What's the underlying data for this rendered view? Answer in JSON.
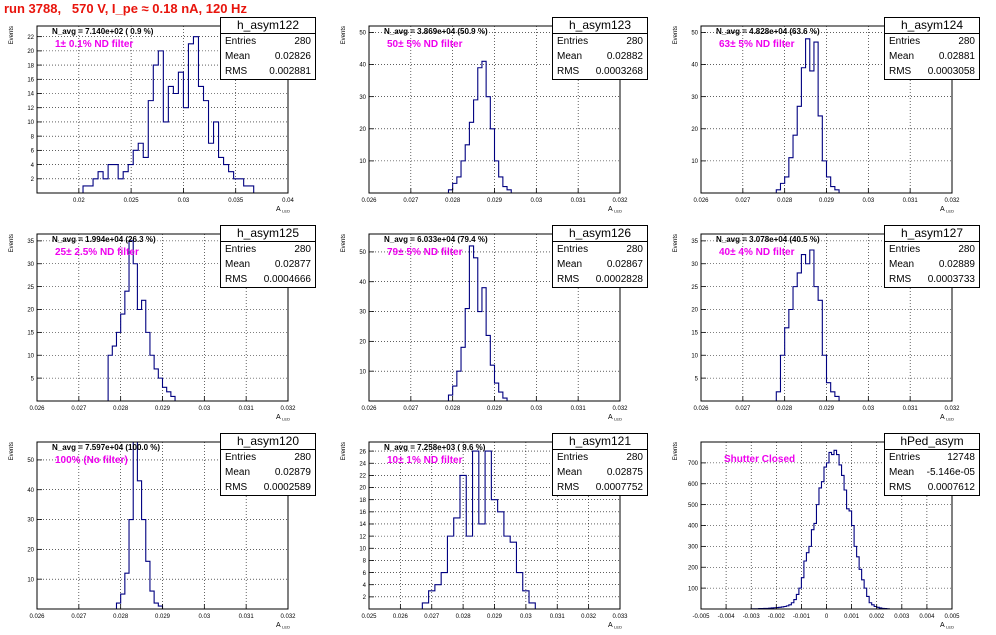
{
  "title": "run 3788,   570 V, I_pe ≈ 0.18 nA, 120 Hz",
  "filter_color": "#ee00ee",
  "hist_color": "#000080",
  "title_color": "#e8140c",
  "chart_data": [
    {
      "type": "histogram",
      "name": "h_asym122",
      "navg": "N_avg = 7.140e+02 ( 0.9 %)",
      "filter": "1± 0.1% ND filter",
      "stats": {
        "entries": "280",
        "mean": "0.02826",
        "rms": "0.002881"
      },
      "xlim": [
        0.016,
        0.04
      ],
      "ylim": [
        0,
        23.5
      ],
      "xticks": [
        0.02,
        0.025,
        0.03,
        0.035,
        0.04
      ],
      "xticklabels": [
        "0.02",
        "0.025",
        "0.03",
        "0.035",
        "0.04"
      ],
      "yticks": [
        2,
        4,
        6,
        8,
        10,
        12,
        14,
        16,
        18,
        20,
        22
      ],
      "yticklabels": [
        "2",
        "4",
        "6",
        "8",
        "10",
        "12",
        "14",
        "16",
        "18",
        "20",
        "22"
      ],
      "ylabel": "Events",
      "xlabel": "A_LED",
      "bins": {
        "x0": 0.0204,
        "dx": 0.00048,
        "values": [
          1,
          1,
          2,
          3,
          2,
          4,
          4,
          2,
          3,
          4,
          6,
          7,
          5,
          13,
          18,
          20,
          10,
          15,
          14,
          17,
          12,
          21,
          22,
          15,
          13,
          7,
          10,
          5,
          4,
          3,
          2,
          2,
          1,
          1
        ]
      }
    },
    {
      "type": "histogram",
      "name": "h_asym123",
      "navg": "N_avg = 3.869e+04 (50.9 %)",
      "filter": "50± 5% ND filter",
      "stats": {
        "entries": "280",
        "mean": "0.02882",
        "rms": "0.0003268"
      },
      "xlim": [
        0.026,
        0.032
      ],
      "ylim": [
        0,
        52
      ],
      "xticks": [
        0.026,
        0.027,
        0.028,
        0.029,
        0.03,
        0.031,
        0.032
      ],
      "xticklabels": [
        "0.026",
        "0.027",
        "0.028",
        "0.029",
        "0.03",
        "0.031",
        "0.032"
      ],
      "yticks": [
        10,
        20,
        30,
        40,
        50
      ],
      "yticklabels": [
        "10",
        "20",
        "30",
        "40",
        "50"
      ],
      "ylabel": "Events",
      "xlabel": "A_LED",
      "bins": {
        "x0": 0.0279,
        "dx": 0.0001,
        "values": [
          1,
          3,
          5,
          10,
          15,
          22,
          29,
          39,
          41,
          30,
          20,
          10,
          5,
          2,
          1
        ]
      }
    },
    {
      "type": "histogram",
      "name": "h_asym124",
      "navg": "N_avg = 4.828e+04 (63.6 %)",
      "filter": "63± 5% ND filter",
      "stats": {
        "entries": "280",
        "mean": "0.02881",
        "rms": "0.0003058"
      },
      "xlim": [
        0.026,
        0.032
      ],
      "ylim": [
        0,
        52
      ],
      "xticks": [
        0.026,
        0.027,
        0.028,
        0.029,
        0.03,
        0.031,
        0.032
      ],
      "xticklabels": [
        "0.026",
        "0.027",
        "0.028",
        "0.029",
        "0.03",
        "0.031",
        "0.032"
      ],
      "yticks": [
        10,
        20,
        30,
        40,
        50
      ],
      "yticklabels": [
        "10",
        "20",
        "30",
        "40",
        "50"
      ],
      "ylabel": "Events",
      "xlabel": "A_LED",
      "bins": {
        "x0": 0.0278,
        "dx": 0.0001,
        "values": [
          1,
          3,
          5,
          11,
          18,
          27,
          39,
          48,
          38,
          47,
          24,
          10,
          5,
          2,
          1
        ]
      }
    },
    {
      "type": "histogram",
      "name": "h_asym125",
      "navg": "N_avg = 1.994e+04 (26.3 %)",
      "filter": "25± 2.5% ND filter",
      "stats": {
        "entries": "280",
        "mean": "0.02877",
        "rms": "0.0004666"
      },
      "xlim": [
        0.026,
        0.032
      ],
      "ylim": [
        0,
        36.5
      ],
      "xticks": [
        0.026,
        0.027,
        0.028,
        0.029,
        0.03,
        0.031,
        0.032
      ],
      "xticklabels": [
        "0.026",
        "0.027",
        "0.028",
        "0.029",
        "0.03",
        "0.031",
        "0.032"
      ],
      "yticks": [
        5,
        10,
        15,
        20,
        25,
        30,
        35
      ],
      "yticklabels": [
        "5",
        "10",
        "15",
        "20",
        "25",
        "30",
        "35"
      ],
      "ylabel": "Events",
      "xlabel": "A_LED",
      "bins": {
        "x0": 0.0277,
        "dx": 0.0001,
        "values": [
          10,
          12,
          15,
          19,
          24,
          35,
          30,
          20,
          22,
          15,
          10,
          7,
          5,
          3,
          2,
          1
        ]
      }
    },
    {
      "type": "histogram",
      "name": "h_asym126",
      "navg": "N_avg = 6.033e+04 (79.4 %)",
      "filter": "79± 5% ND filter",
      "stats": {
        "entries": "280",
        "mean": "0.02867",
        "rms": "0.0002828"
      },
      "xlim": [
        0.026,
        0.032
      ],
      "ylim": [
        0,
        56
      ],
      "xticks": [
        0.026,
        0.027,
        0.028,
        0.029,
        0.03,
        0.031,
        0.032
      ],
      "xticklabels": [
        "0.026",
        "0.027",
        "0.028",
        "0.029",
        "0.03",
        "0.031",
        "0.032"
      ],
      "yticks": [
        10,
        20,
        30,
        40,
        50
      ],
      "yticklabels": [
        "10",
        "20",
        "30",
        "40",
        "50"
      ],
      "ylabel": "Events",
      "xlabel": "A_LED",
      "bins": {
        "x0": 0.0279,
        "dx": 0.0001,
        "values": [
          2,
          5,
          10,
          18,
          31,
          52,
          48,
          30,
          38,
          22,
          12,
          6,
          3,
          1
        ]
      }
    },
    {
      "type": "histogram",
      "name": "h_asym127",
      "navg": "N_avg = 3.078e+04 (40.5 %)",
      "filter": "40± 4% ND filter",
      "stats": {
        "entries": "280",
        "mean": "0.02889",
        "rms": "0.0003733"
      },
      "xlim": [
        0.026,
        0.032
      ],
      "ylim": [
        0,
        36.5
      ],
      "xticks": [
        0.026,
        0.027,
        0.028,
        0.029,
        0.03,
        0.031,
        0.032
      ],
      "xticklabels": [
        "0.026",
        "0.027",
        "0.028",
        "0.029",
        "0.03",
        "0.031",
        "0.032"
      ],
      "yticks": [
        5,
        10,
        15,
        20,
        25,
        30,
        35
      ],
      "yticklabels": [
        "5",
        "10",
        "15",
        "20",
        "25",
        "30",
        "35"
      ],
      "ylabel": "Events",
      "xlabel": "A_LED",
      "bins": {
        "x0": 0.0278,
        "dx": 0.0001,
        "values": [
          2,
          10,
          16,
          20,
          25,
          28,
          32,
          30,
          33,
          25,
          22,
          10,
          4,
          2,
          1
        ]
      }
    },
    {
      "type": "histogram",
      "name": "h_asym120",
      "navg": "N_avg = 7.597e+04 (100.0 %)",
      "filter": "100% (No filter)",
      "stats": {
        "entries": "280",
        "mean": "0.02879",
        "rms": "0.0002589"
      },
      "xlim": [
        0.026,
        0.032
      ],
      "ylim": [
        0,
        56
      ],
      "xticks": [
        0.026,
        0.027,
        0.028,
        0.029,
        0.03,
        0.031,
        0.032
      ],
      "xticklabels": [
        "0.026",
        "0.027",
        "0.028",
        "0.029",
        "0.03",
        "0.031",
        "0.032"
      ],
      "yticks": [
        10,
        20,
        30,
        40,
        50
      ],
      "yticklabels": [
        "10",
        "20",
        "30",
        "40",
        "50"
      ],
      "ylabel": "Events",
      "xlabel": "A_LED",
      "bins": {
        "x0": 0.0279,
        "dx": 0.0001,
        "values": [
          2,
          5,
          12,
          30,
          56,
          43,
          30,
          16,
          6,
          2,
          1
        ]
      }
    },
    {
      "type": "histogram",
      "name": "h_asym121",
      "navg": "N_avg = 7.258e+03 ( 9.6 %)",
      "filter": "10± 1% ND filter",
      "stats": {
        "entries": "280",
        "mean": "0.02875",
        "rms": "0.0007752"
      },
      "xlim": [
        0.025,
        0.033
      ],
      "ylim": [
        0,
        27.5
      ],
      "xticks": [
        0.025,
        0.026,
        0.027,
        0.028,
        0.029,
        0.03,
        0.031,
        0.032,
        0.033
      ],
      "xticklabels": [
        "0.025",
        "0.026",
        "0.027",
        "0.028",
        "0.029",
        "0.03",
        "0.031",
        "0.032",
        "0.033"
      ],
      "yticks": [
        2,
        4,
        6,
        8,
        10,
        12,
        14,
        16,
        18,
        20,
        22,
        24,
        26
      ],
      "yticklabels": [
        "2",
        "4",
        "6",
        "8",
        "10",
        "12",
        "14",
        "16",
        "18",
        "20",
        "22",
        "24",
        "26"
      ],
      "ylabel": "Events",
      "xlabel": "A_LED",
      "bins": {
        "x0": 0.0267,
        "dx": 0.0002,
        "values": [
          1,
          3,
          4,
          6,
          12,
          15,
          22,
          12,
          26,
          14,
          26,
          18,
          16,
          12,
          11,
          6,
          3,
          1
        ]
      }
    },
    {
      "type": "histogram",
      "name": "hPed_asym",
      "navg": "",
      "filter": "Shutter Closed",
      "stats": {
        "entries": "12748",
        "mean": "-5.146e-05",
        "rms": "0.0007612"
      },
      "xlim": [
        -0.005,
        0.005
      ],
      "ylim": [
        0,
        800
      ],
      "xticks": [
        -0.005,
        -0.004,
        -0.003,
        -0.002,
        -0.001,
        0,
        0.001,
        0.002,
        0.003,
        0.004,
        0.005
      ],
      "xticklabels": [
        "-0.005",
        "-0.004",
        "-0.003",
        "-0.002",
        "-0.001",
        "0",
        "0.001",
        "0.002",
        "0.003",
        "0.004",
        "0.005"
      ],
      "yticks": [
        100,
        200,
        300,
        400,
        500,
        600,
        700
      ],
      "yticklabels": [
        "100",
        "200",
        "300",
        "400",
        "500",
        "600",
        "700"
      ],
      "ylabel": "Events",
      "xlabel": "A_LED",
      "bins": {
        "x0": -0.0031,
        "dx": 0.0001,
        "values": [
          0,
          1,
          1,
          1,
          2,
          2,
          3,
          3,
          4,
          5,
          6,
          7,
          8,
          10,
          12,
          15,
          20,
          30,
          45,
          70,
          100,
          150,
          230,
          270,
          300,
          380,
          410,
          500,
          580,
          610,
          680,
          700,
          750,
          740,
          760,
          740,
          690,
          640,
          570,
          480,
          470,
          400,
          300,
          250,
          190,
          140,
          100,
          60,
          30,
          20,
          12,
          8,
          5,
          3,
          2,
          1
        ]
      }
    }
  ]
}
